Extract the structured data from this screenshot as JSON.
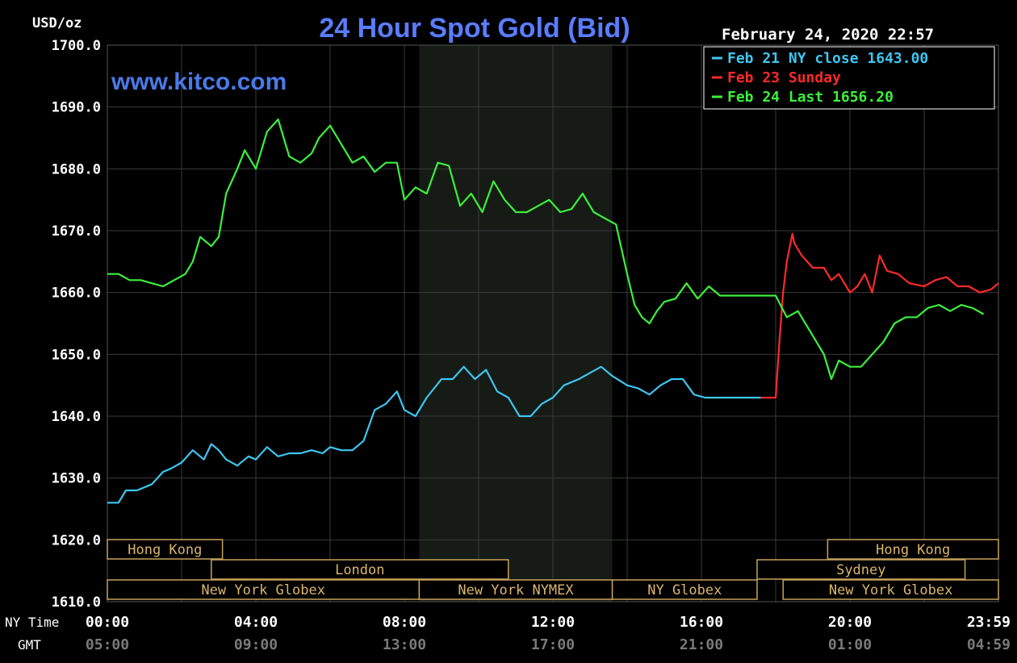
{
  "chart_data": {
    "type": "line",
    "title": "24 Hour Spot Gold (Bid)",
    "watermark": "www.kitco.com",
    "timestamp": "February 24, 2020 22:57",
    "ylabel": "USD/oz",
    "ylim": [
      1610,
      1700
    ],
    "grid": true,
    "legend_placement": "top-right",
    "y_ticks": [
      "1700.0",
      "1690.0",
      "1680.0",
      "1670.0",
      "1660.0",
      "1650.0",
      "1640.0",
      "1630.0",
      "1620.0",
      "1610.0"
    ],
    "x_ticks_ny": [
      "00:00",
      "04:00",
      "08:00",
      "12:00",
      "16:00",
      "20:00",
      "23:59"
    ],
    "x_ticks_gmt": [
      "05:00",
      "09:00",
      "13:00",
      "17:00",
      "21:00",
      "01:00",
      "04:59"
    ],
    "x_row_labels": {
      "ny": "NY Time",
      "gmt": "GMT"
    },
    "highlight_range_hours": [
      8.4,
      13.6
    ],
    "series": [
      {
        "name": "Feb 21 NY close 1643.00",
        "color": "#3ec6f0",
        "x": [
          0,
          0.3,
          0.5,
          0.8,
          1.2,
          1.5,
          1.7,
          2.0,
          2.3,
          2.6,
          2.8,
          3.0,
          3.2,
          3.5,
          3.8,
          4.0,
          4.3,
          4.6,
          4.9,
          5.2,
          5.5,
          5.8,
          6.0,
          6.3,
          6.6,
          6.9,
          7.2,
          7.5,
          7.8,
          8.0,
          8.3,
          8.6,
          9.0,
          9.3,
          9.6,
          9.9,
          10.2,
          10.5,
          10.8,
          11.1,
          11.4,
          11.7,
          12.0,
          12.3,
          12.7,
          13.0,
          13.3,
          13.6,
          14.0,
          14.3,
          14.6,
          14.9,
          15.2,
          15.5,
          15.8,
          16.1,
          16.4,
          16.7,
          17.0,
          17.3,
          17.6
        ],
        "values": [
          1626,
          1626,
          1628,
          1628,
          1629,
          1631,
          1631.5,
          1632.5,
          1634.5,
          1633,
          1635.5,
          1634.5,
          1633,
          1632,
          1633.5,
          1633,
          1635,
          1633.5,
          1634,
          1634,
          1634.5,
          1634,
          1635,
          1634.5,
          1634.5,
          1636,
          1641,
          1642,
          1644,
          1641,
          1640,
          1643,
          1646,
          1646,
          1648,
          1646,
          1647.5,
          1644,
          1643,
          1640,
          1640,
          1642,
          1643,
          1645,
          1646,
          1647,
          1648,
          1646.5,
          1645,
          1644.5,
          1643.5,
          1645,
          1646,
          1646,
          1643.5,
          1643,
          1643,
          1643,
          1643,
          1643,
          1643
        ]
      },
      {
        "name": "Feb 23 Sunday",
        "color": "#ff2a2a",
        "x": [
          17.6,
          18.0,
          18.1,
          18.2,
          18.3,
          18.45,
          18.5,
          18.7,
          19.0,
          19.3,
          19.5,
          19.7,
          20.0,
          20.2,
          20.4,
          20.6,
          20.8,
          21.0,
          21.3,
          21.6,
          22.0,
          22.3,
          22.6,
          22.9,
          23.2,
          23.5,
          23.8,
          24.0
        ],
        "values": [
          1643,
          1643,
          1652,
          1660,
          1665,
          1669.5,
          1668,
          1666,
          1664,
          1664,
          1662,
          1663,
          1660,
          1661,
          1663,
          1660,
          1666,
          1663.5,
          1663,
          1661.5,
          1661,
          1662,
          1662.5,
          1661,
          1661,
          1660,
          1660.5,
          1661.5
        ]
      },
      {
        "name": "Feb 24 Last 1656.20",
        "color": "#3cf03c",
        "x": [
          0,
          0.3,
          0.6,
          0.9,
          1.2,
          1.5,
          1.8,
          2.1,
          2.3,
          2.5,
          2.8,
          3.0,
          3.2,
          3.5,
          3.7,
          4.0,
          4.3,
          4.6,
          4.9,
          5.2,
          5.5,
          5.7,
          6.0,
          6.3,
          6.6,
          6.9,
          7.2,
          7.5,
          7.8,
          8.0,
          8.3,
          8.6,
          8.9,
          9.2,
          9.5,
          9.8,
          10.1,
          10.4,
          10.7,
          11.0,
          11.3,
          11.6,
          11.9,
          12.2,
          12.5,
          12.8,
          13.1,
          13.4,
          13.7,
          14.0,
          14.2,
          14.4,
          14.6,
          14.8,
          15.0,
          15.3,
          15.6,
          15.9,
          16.2,
          16.5,
          16.8,
          17.1,
          17.4,
          17.7,
          18.0,
          18.3,
          18.6,
          19.0,
          19.3,
          19.5,
          19.7,
          20.0,
          20.3,
          20.6,
          20.9,
          21.2,
          21.5,
          21.8,
          22.1,
          22.4,
          22.7,
          23.0,
          23.3,
          23.6
        ],
        "values": [
          1663,
          1663,
          1662,
          1662,
          1661.5,
          1661,
          1662,
          1663,
          1665,
          1669,
          1667.5,
          1669,
          1676,
          1680,
          1683,
          1680,
          1686,
          1688,
          1682,
          1681,
          1682.5,
          1685,
          1687,
          1684,
          1681,
          1682,
          1679.5,
          1681,
          1681,
          1675,
          1677,
          1676,
          1681,
          1680.5,
          1674,
          1676,
          1673,
          1678,
          1675,
          1673,
          1673,
          1674,
          1675,
          1673,
          1673.5,
          1676,
          1673,
          1672,
          1671,
          1663,
          1658,
          1656,
          1655,
          1657,
          1658.5,
          1659,
          1661.5,
          1659,
          1661,
          1659.5,
          1659.5,
          1659.5,
          1659.5,
          1659.5,
          1659.5,
          1656,
          1657,
          1653,
          1650,
          1646,
          1649,
          1648,
          1648,
          1650,
          1652,
          1655,
          1656,
          1656,
          1657.5,
          1658,
          1657,
          1658,
          1657.5,
          1656.5
        ]
      }
    ],
    "sessions": [
      {
        "label": "Hong Kong",
        "start": 0,
        "end": 3.1
      },
      {
        "label": "London",
        "start": 2.8,
        "end": 10.8
      },
      {
        "label": "New York Globex",
        "start": 0,
        "end": 8.4
      },
      {
        "label": "New York NYMEX",
        "start": 8.4,
        "end": 13.6
      },
      {
        "label": "NY Globex",
        "start": 13.6,
        "end": 17.5
      },
      {
        "label": "Hong Kong",
        "start": 19.4,
        "end": 24
      },
      {
        "label": "Sydney",
        "start": 17.5,
        "end": 23.1
      },
      {
        "label": "New York Globex",
        "start": 18.2,
        "end": 24
      }
    ]
  }
}
